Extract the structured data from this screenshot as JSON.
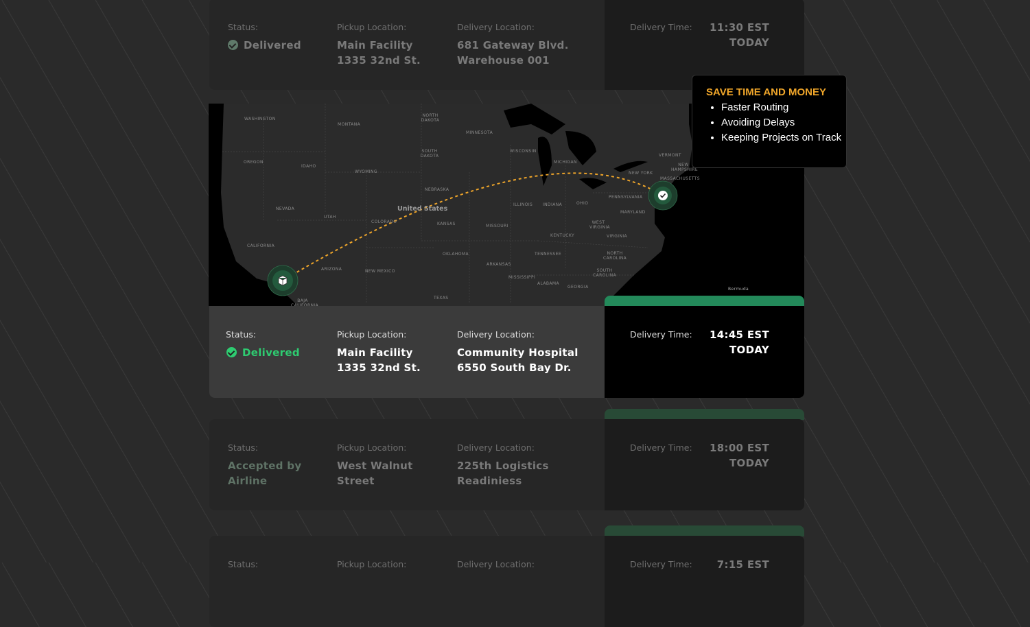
{
  "labels": {
    "status": "Status:",
    "pickup": "Pickup Location:",
    "delivery": "Delivery Location:",
    "time": "Delivery Time:"
  },
  "colors": {
    "accent_green": "#23895a",
    "tab_green_dim": "#284a36",
    "promo_orange": "#f0a62a",
    "delivered_green": "#2ecc71"
  },
  "deliveries": [
    {
      "status": "Delivered",
      "status_icon": "check-circle-icon",
      "pickup": [
        "Main Facility",
        "1335 32nd St."
      ],
      "delivery": [
        "681 Gateway Blvd.",
        "Warehouse 001"
      ],
      "time": "11:30 EST",
      "day": "TODAY"
    },
    {
      "status": "Delivered",
      "status_icon": "check-circle-icon",
      "pickup": [
        "Main Facility",
        "1335 32nd St."
      ],
      "delivery": [
        "Community Hospital",
        "6550 South Bay Dr."
      ],
      "time": "14:45 EST",
      "day": "TODAY",
      "selected": true
    },
    {
      "status": "Accepted by Airline",
      "pickup": [
        "West Walnut Street"
      ],
      "delivery": [
        "225th Logistics Readiniess"
      ],
      "time": "18:00 EST",
      "day": "TODAY"
    },
    {
      "time": "7:15 EST"
    }
  ],
  "promo": {
    "title": "SAVE TIME AND MONEY",
    "items": [
      "Faster Routing",
      "Avoiding Delays",
      "Keeping Projects on Track"
    ]
  },
  "map": {
    "country": "United States",
    "origin_icon": "package-icon",
    "destination_icon": "check-icon",
    "route_color": "#f0a62a",
    "states": [
      "WASHINGTON",
      "MONTANA",
      "NORTH DAKOTA",
      "MINNESOTA",
      "OREGON",
      "IDAHO",
      "SOUTH DAKOTA",
      "WYOMING",
      "WISCONSIN",
      "MICHIGAN",
      "NEBRASKA",
      "NEVADA",
      "UTAH",
      "COLORADO",
      "KANSAS",
      "MISSOURI",
      "ILLINOIS",
      "INDIANA",
      "OHIO",
      "CALIFORNIA",
      "ARIZONA",
      "NEW MEXICO",
      "OKLAHOMA",
      "ARKANSAS",
      "TENNESSEE",
      "KENTUCKY",
      "MISSISSIPPI",
      "ALABAMA",
      "GEORGIA",
      "TEXAS",
      "PENNSYLVANIA",
      "NEW YORK",
      "VERMONT",
      "NEW HAMPSHIRE",
      "MASSACHUSETTS",
      "MARYLAND",
      "WEST VIRGINIA",
      "VIRGINIA",
      "NORTH CAROLINA",
      "SOUTH CAROLINA",
      "BAJA CALIFORNIA",
      "Bermuda"
    ]
  }
}
